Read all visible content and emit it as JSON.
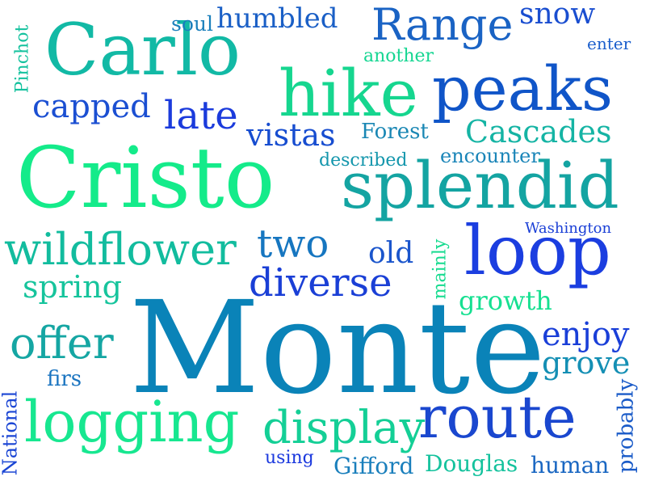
{
  "words": [
    {
      "text": "Monte",
      "color": "#0a83b8",
      "vertical": false
    },
    {
      "text": "Cristo",
      "color": "#14eb8a",
      "vertical": false
    },
    {
      "text": "Carlo",
      "color": "#12b9a5",
      "vertical": false
    },
    {
      "text": "splendid",
      "color": "#14a4a2",
      "vertical": false
    },
    {
      "text": "peaks",
      "color": "#1055c8",
      "vertical": false
    },
    {
      "text": "loop",
      "color": "#1b3ee0",
      "vertical": false
    },
    {
      "text": "hike",
      "color": "#16d68f",
      "vertical": false
    },
    {
      "text": "route",
      "color": "#1a47cf",
      "vertical": false
    },
    {
      "text": "logging",
      "color": "#17e790",
      "vertical": false
    },
    {
      "text": "wildflower",
      "color": "#12bc9e",
      "vertical": false
    },
    {
      "text": "display",
      "color": "#14cf96",
      "vertical": false
    },
    {
      "text": "diverse",
      "color": "#1a3fd6",
      "vertical": false
    },
    {
      "text": "Range",
      "color": "#1a63c4",
      "vertical": false
    },
    {
      "text": "offer",
      "color": "#15a6a3",
      "vertical": false
    },
    {
      "text": "two",
      "color": "#1676c0",
      "vertical": false
    },
    {
      "text": "Cascades",
      "color": "#15b4a4",
      "vertical": false
    },
    {
      "text": "vistas",
      "color": "#174dd0",
      "vertical": false
    },
    {
      "text": "humbled",
      "color": "#1a5fc6",
      "vertical": false
    },
    {
      "text": "late",
      "color": "#1b3bdc",
      "vertical": false
    },
    {
      "text": "enjoy",
      "color": "#1a3fd8",
      "vertical": false
    },
    {
      "text": "capped",
      "color": "#1b4fd2",
      "vertical": false
    },
    {
      "text": "spring",
      "color": "#16c49c",
      "vertical": false
    },
    {
      "text": "snow",
      "color": "#1a4ed0",
      "vertical": false
    },
    {
      "text": "grove",
      "color": "#148fb4",
      "vertical": false
    },
    {
      "text": "old",
      "color": "#1a55cc",
      "vertical": false
    },
    {
      "text": "growth",
      "color": "#16e091",
      "vertical": false
    },
    {
      "text": "Douglas",
      "color": "#14c29d",
      "vertical": false
    },
    {
      "text": "human",
      "color": "#1a67c2",
      "vertical": false
    },
    {
      "text": "Gifford",
      "color": "#1a7fbc",
      "vertical": false
    },
    {
      "text": "encounter",
      "color": "#1a85b8",
      "vertical": false
    },
    {
      "text": "described",
      "color": "#1396ac",
      "vertical": false
    },
    {
      "text": "Forest",
      "color": "#1a87b4",
      "vertical": false
    },
    {
      "text": "another",
      "color": "#16d692",
      "vertical": false
    },
    {
      "text": "soul",
      "color": "#1a7fbb",
      "vertical": false
    },
    {
      "text": "enter",
      "color": "#1a5ecc",
      "vertical": false
    },
    {
      "text": "firs",
      "color": "#1a74c0",
      "vertical": false
    },
    {
      "text": "using",
      "color": "#1b39de",
      "vertical": false
    },
    {
      "text": "Washington",
      "color": "#1a3fd6",
      "vertical": false
    },
    {
      "text": "Pinchot",
      "color": "#14c29e",
      "vertical": true
    },
    {
      "text": "mainly",
      "color": "#16db8f",
      "vertical": true
    },
    {
      "text": "National",
      "color": "#1a45d4",
      "vertical": true
    },
    {
      "text": "probably",
      "color": "#1a5bc8",
      "vertical": true
    }
  ]
}
